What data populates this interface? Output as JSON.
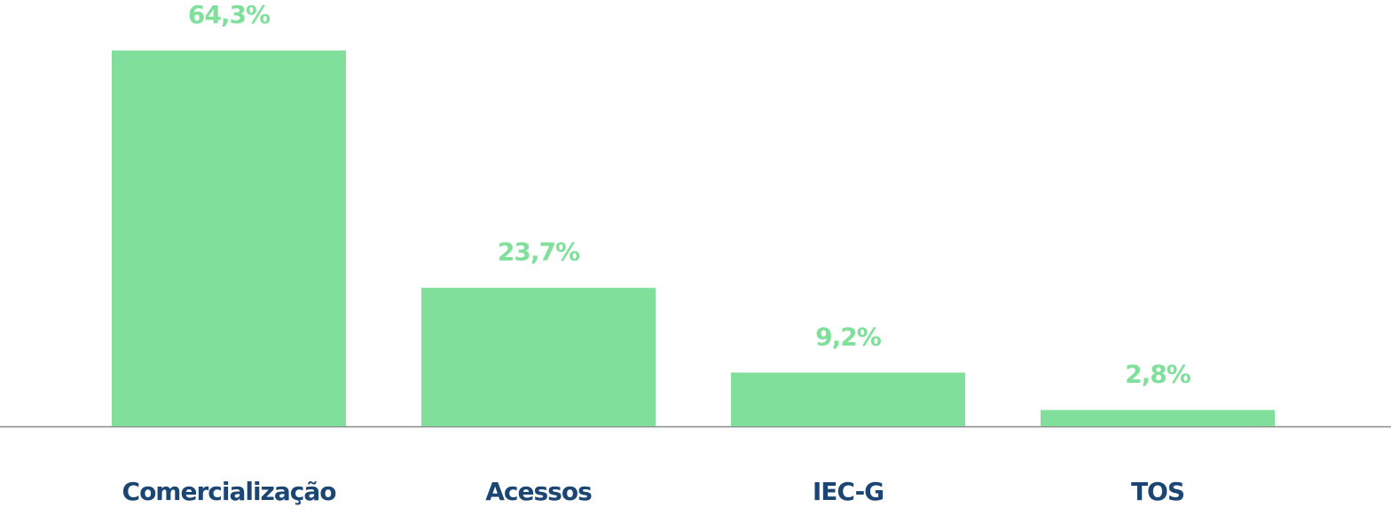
{
  "chart_data": {
    "type": "bar",
    "categories": [
      "Comercialização",
      "Acessos",
      "IEC-G",
      "TOS"
    ],
    "values": [
      64.3,
      23.7,
      9.2,
      2.8
    ],
    "value_labels": [
      "64,3%",
      "23,7%",
      "9,2%",
      "2,8%"
    ],
    "color": "#80e09b"
  }
}
